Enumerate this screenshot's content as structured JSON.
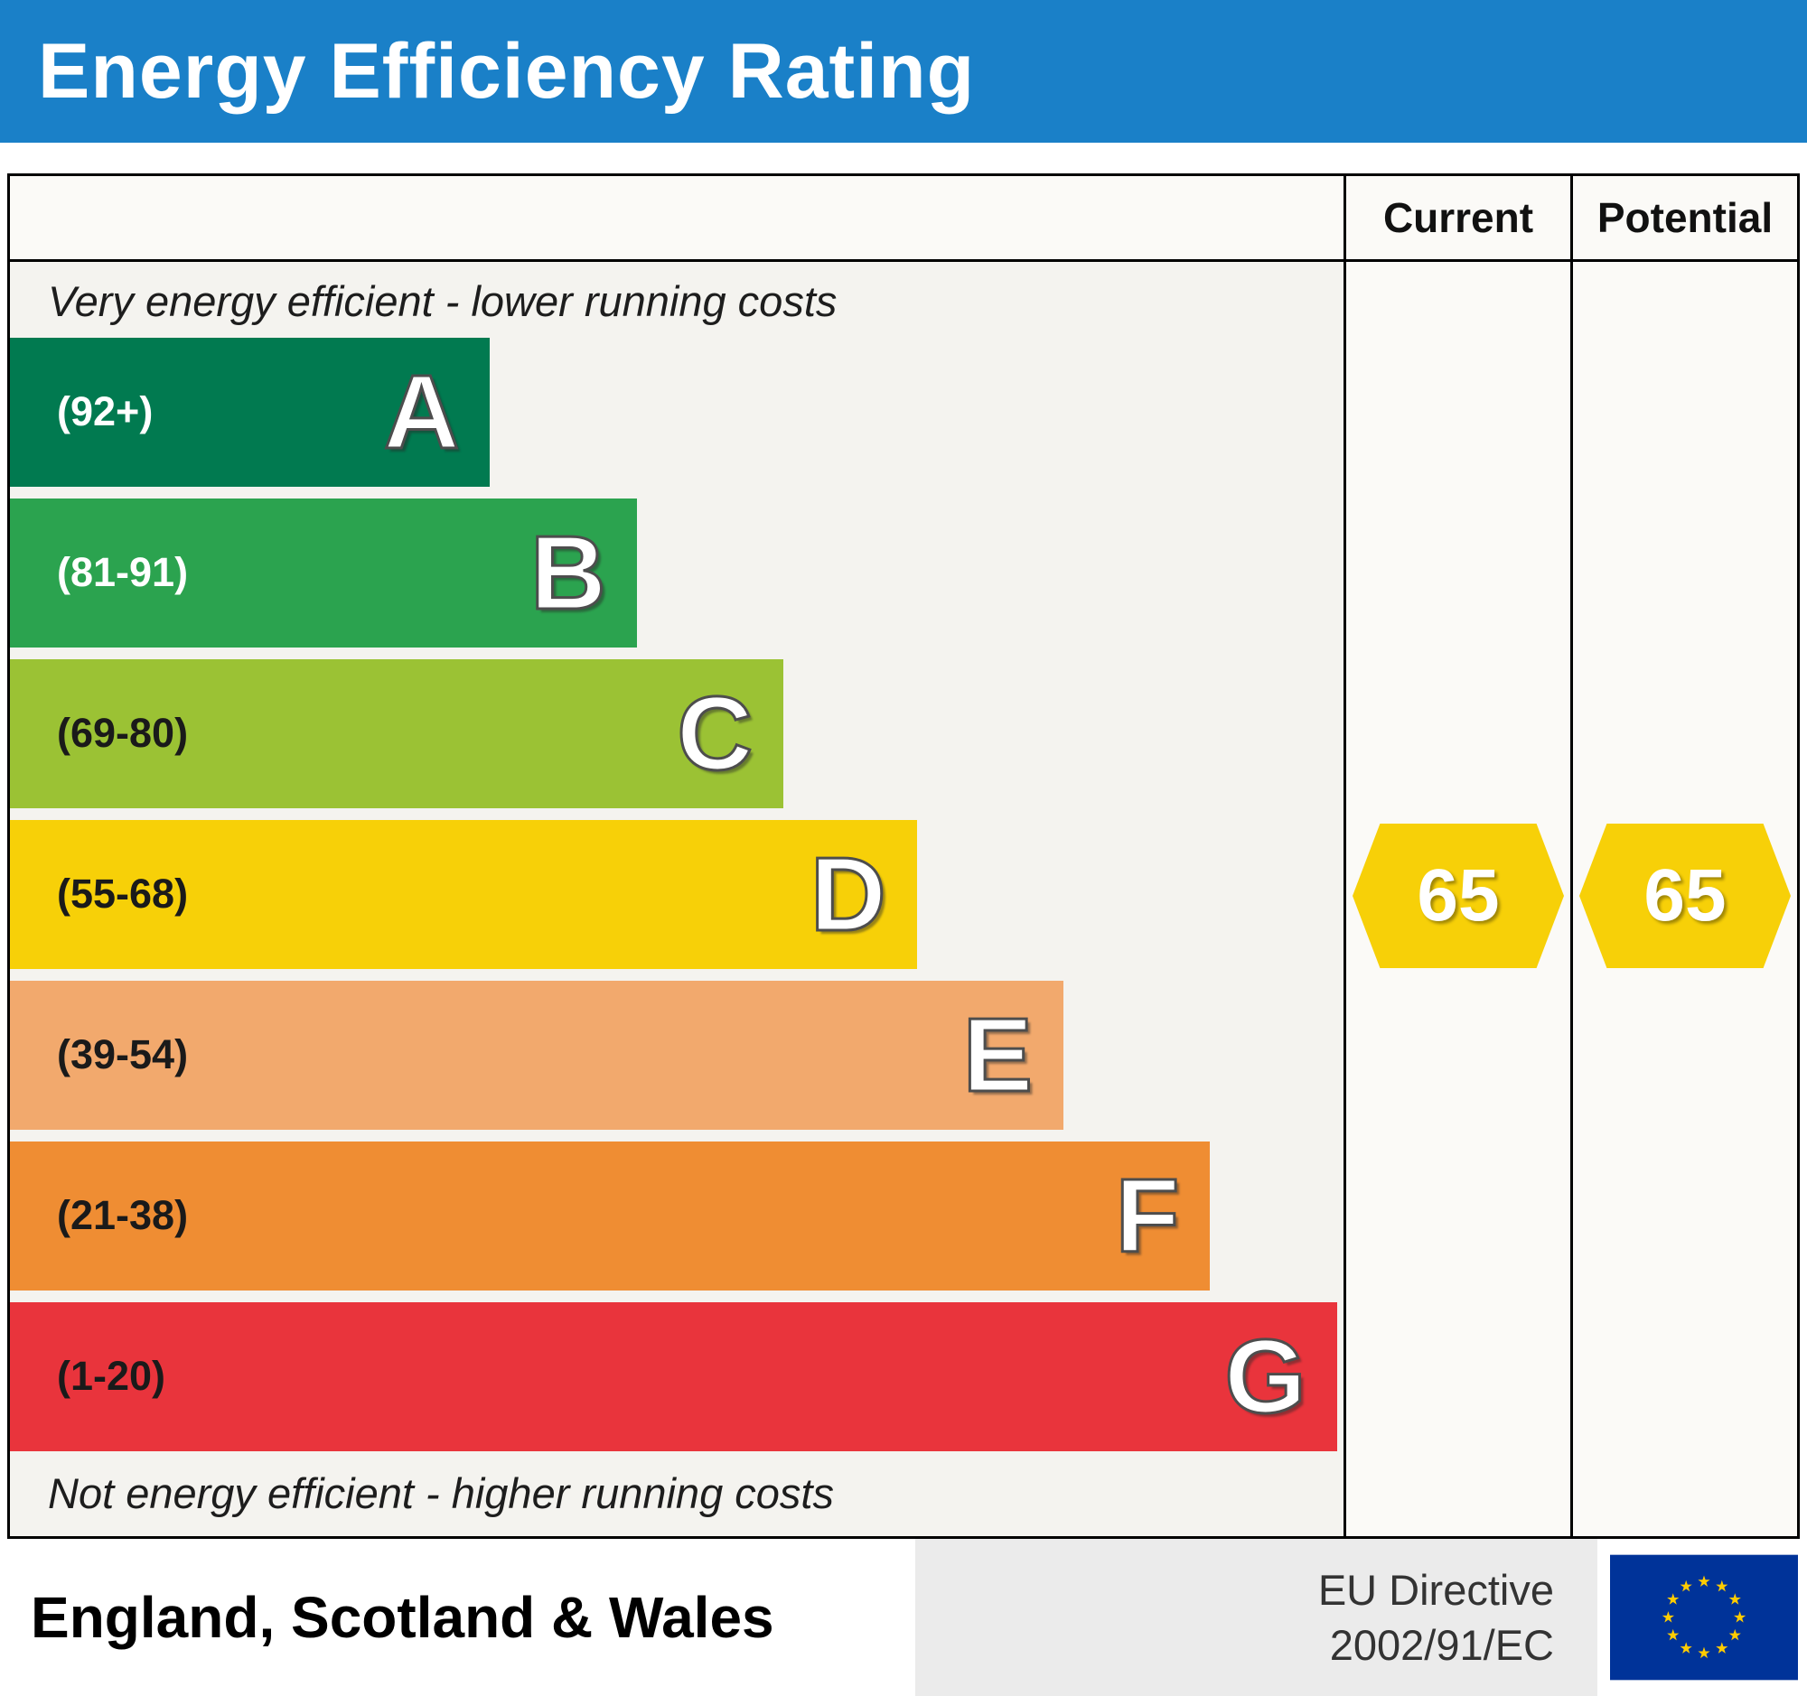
{
  "header": {
    "title": "Energy Efficiency Rating"
  },
  "columns": {
    "current": "Current",
    "potential": "Potential"
  },
  "captions": {
    "top": "Very energy efficient - lower running costs",
    "bottom": "Not energy efficient - higher running costs"
  },
  "chart_data": {
    "type": "bar",
    "subtype": "epc_energy_efficiency_rating",
    "title": "Energy Efficiency Rating",
    "bands": [
      {
        "letter": "A",
        "range": "(92+)",
        "min": 92,
        "max": 100,
        "color": "#017a50",
        "text_color": "#ffffff",
        "width_pct": 36
      },
      {
        "letter": "B",
        "range": "(81-91)",
        "min": 81,
        "max": 91,
        "color": "#2ba34f",
        "text_color": "#ffffff",
        "width_pct": 47
      },
      {
        "letter": "C",
        "range": "(69-80)",
        "min": 69,
        "max": 80,
        "color": "#9bc234",
        "text_color": "#1a1a1a",
        "width_pct": 58
      },
      {
        "letter": "D",
        "range": "(55-68)",
        "min": 55,
        "max": 68,
        "color": "#f7d008",
        "text_color": "#1a1a1a",
        "width_pct": 68
      },
      {
        "letter": "E",
        "range": "(39-54)",
        "min": 39,
        "max": 54,
        "color": "#f2a96d",
        "text_color": "#1a1a1a",
        "width_pct": 79
      },
      {
        "letter": "F",
        "range": "(21-38)",
        "min": 21,
        "max": 38,
        "color": "#ef8d33",
        "text_color": "#1a1a1a",
        "width_pct": 90
      },
      {
        "letter": "G",
        "range": "(1-20)",
        "min": 1,
        "max": 20,
        "color": "#e9343c",
        "text_color": "#1a1a1a",
        "width_pct": 99.5
      }
    ],
    "current": {
      "value": 65,
      "band": "D",
      "color": "#f7d008"
    },
    "potential": {
      "value": 65,
      "band": "D",
      "color": "#f7d008"
    }
  },
  "footer": {
    "region": "England, Scotland & Wales",
    "directive_line1": "EU Directive",
    "directive_line2": "2002/91/EC",
    "flag_icon": "eu-flag"
  }
}
